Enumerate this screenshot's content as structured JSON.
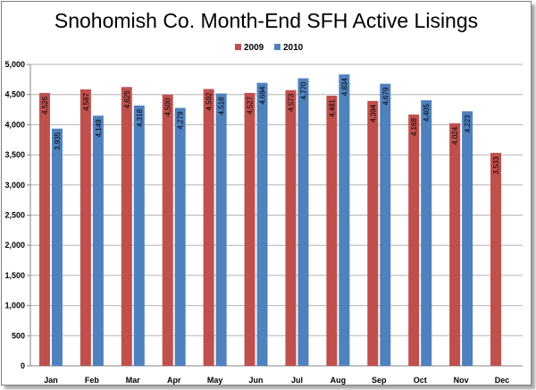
{
  "chart_data": {
    "type": "bar",
    "title": "Snohomish Co. Month-End SFH Active Lisings",
    "categories": [
      "Jan",
      "Feb",
      "Mar",
      "Apr",
      "May",
      "Jun",
      "Jul",
      "Aug",
      "Sep",
      "Oct",
      "Nov",
      "Dec"
    ],
    "series": [
      {
        "name": "2009",
        "color": "#c0504d",
        "values": [
          4526,
          4587,
          4625,
          4500,
          4592,
          4527,
          4573,
          4481,
          4394,
          4168,
          4024,
          3533
        ]
      },
      {
        "name": "2010",
        "color": "#4f81bd",
        "values": [
          3935,
          4149,
          4318,
          4279,
          4518,
          4694,
          4770,
          4834,
          4679,
          4405,
          4223,
          null
        ]
      }
    ],
    "data_labels": [
      [
        "4,526",
        "4,587",
        "4,625",
        "4,500",
        "4,592",
        "4,527",
        "4,573",
        "4,481",
        "4,394",
        "4,168",
        "4,024",
        "3,533"
      ],
      [
        "3,935",
        "4,149",
        "4,318",
        "4,279",
        "4,518",
        "4,694",
        "4,770",
        "4,834",
        "4,679",
        "4,405",
        "4,223",
        null
      ]
    ],
    "yticks": [
      "0",
      "500",
      "1,000",
      "1,500",
      "2,000",
      "2,500",
      "3,000",
      "3,500",
      "4,000",
      "4,500",
      "5,000"
    ],
    "ylim": [
      0,
      5000
    ],
    "xlabel": "",
    "ylabel": "",
    "grid": true,
    "legend_position": "top-center"
  }
}
